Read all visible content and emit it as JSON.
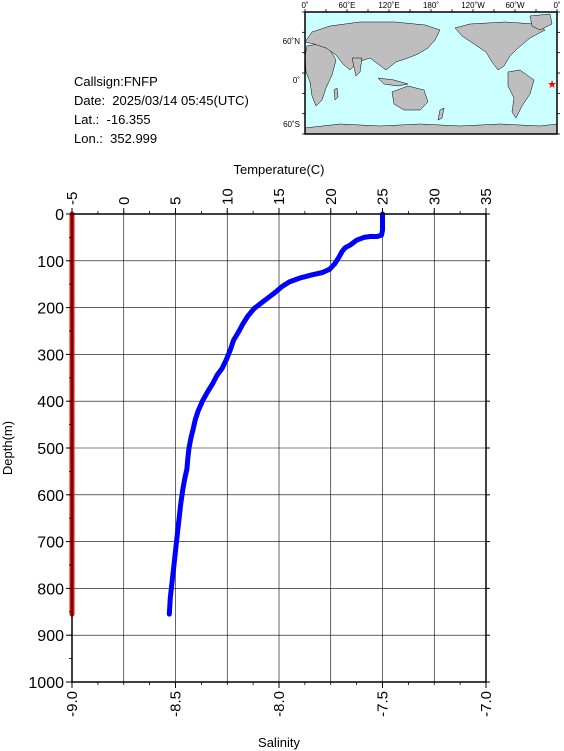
{
  "info": {
    "callsign": "Callsign:FNFP",
    "date": "Date:  2025/03/14 05:45(UTC)",
    "lat": "Lat.:  -16.355",
    "lon": "Lon.:  352.999"
  },
  "map": {
    "top_ticks": [
      "0˚",
      "60˚E",
      "120˚E",
      "180˚",
      "120˚W",
      "60˚W",
      "0˚"
    ],
    "lat_ticks": [
      "60˚N",
      "0˚",
      "60˚S"
    ],
    "ocean_color": "#ccffff",
    "land_color": "#bebebe",
    "marker_color": "#ff0000",
    "marker": {
      "lon": 352.999,
      "lat": -16.355
    }
  },
  "chart_data": {
    "type": "line",
    "temperature_axis": {
      "label": "Temperature(C)",
      "range": [
        -5,
        35
      ],
      "ticks": [
        "-5",
        "0",
        "5",
        "10",
        "15",
        "20",
        "25",
        "30",
        "35"
      ]
    },
    "salinity_axis": {
      "label": "Salinity",
      "range": [
        -9.0,
        -7.0
      ],
      "ticks": [
        "-9.0",
        "-8.5",
        "-8.0",
        "-7.5",
        "-7.0"
      ]
    },
    "depth_axis": {
      "label": "Depth(m)",
      "range": [
        0,
        1000
      ],
      "ticks": [
        "0",
        "100",
        "200",
        "300",
        "400",
        "500",
        "600",
        "700",
        "800",
        "900",
        "1000"
      ]
    },
    "grid": true,
    "series": [
      {
        "color": "#0000ff",
        "axis": "temperature",
        "points": [
          [
            25.0,
            0
          ],
          [
            25.0,
            20
          ],
          [
            25.0,
            35
          ],
          [
            24.9,
            45
          ],
          [
            24.5,
            48
          ],
          [
            23.8,
            48
          ],
          [
            23.2,
            50
          ],
          [
            22.5,
            56
          ],
          [
            21.9,
            66
          ],
          [
            21.4,
            72
          ],
          [
            21.1,
            80
          ],
          [
            20.8,
            92
          ],
          [
            20.4,
            106
          ],
          [
            19.9,
            118
          ],
          [
            19.2,
            125
          ],
          [
            18.2,
            130
          ],
          [
            17.0,
            137
          ],
          [
            16.0,
            145
          ],
          [
            15.3,
            155
          ],
          [
            14.6,
            168
          ],
          [
            13.9,
            180
          ],
          [
            13.3,
            190
          ],
          [
            12.6,
            202
          ],
          [
            12.0,
            218
          ],
          [
            11.5,
            235
          ],
          [
            11.1,
            252
          ],
          [
            10.6,
            270
          ],
          [
            10.3,
            290
          ],
          [
            9.9,
            312
          ],
          [
            9.5,
            330
          ],
          [
            9.0,
            345
          ],
          [
            8.6,
            362
          ],
          [
            8.1,
            380
          ],
          [
            7.6,
            400
          ],
          [
            7.2,
            420
          ],
          [
            6.9,
            440
          ],
          [
            6.7,
            460
          ],
          [
            6.5,
            478
          ],
          [
            6.3,
            500
          ],
          [
            6.2,
            520
          ],
          [
            6.1,
            545
          ],
          [
            5.9,
            565
          ],
          [
            5.7,
            590
          ],
          [
            5.5,
            620
          ],
          [
            5.3,
            660
          ],
          [
            5.1,
            700
          ],
          [
            4.9,
            740
          ],
          [
            4.7,
            780
          ],
          [
            4.5,
            820
          ],
          [
            4.4,
            855
          ]
        ]
      },
      {
        "color": "#ff0000",
        "axis": "salinity",
        "points": [
          [
            -9.0,
            0
          ],
          [
            -9.0,
            855
          ]
        ]
      }
    ]
  }
}
